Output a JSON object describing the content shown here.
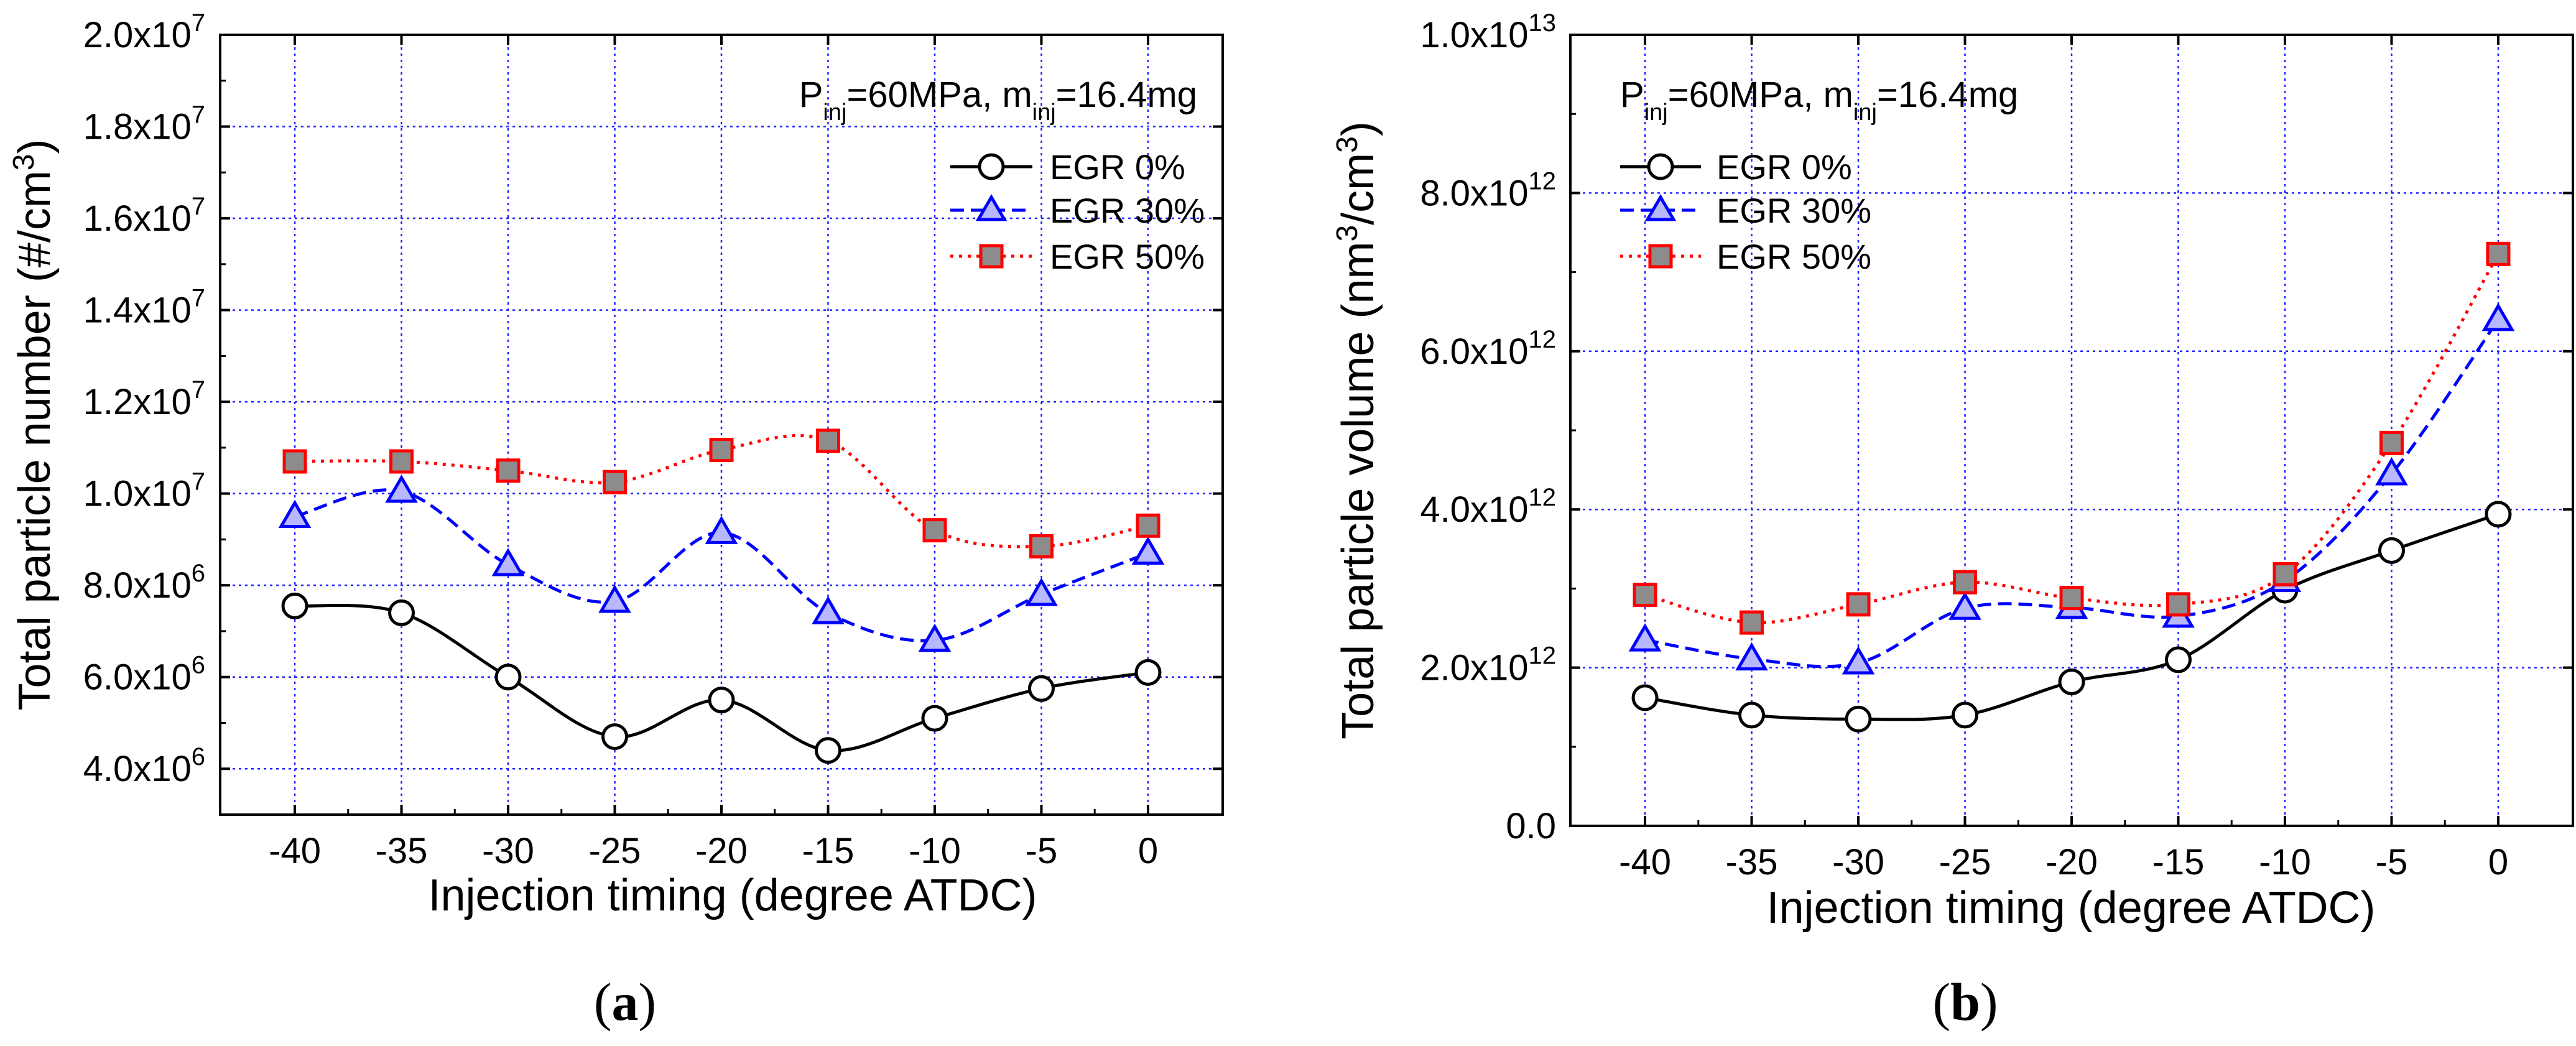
{
  "chart_data": [
    {
      "type": "line",
      "panel_label": {
        "open": "(",
        "letter": "a",
        "close": ")"
      },
      "xlabel": "Injection timing (degree ATDC)",
      "ylabel": {
        "main": "Total particle number (#/cm",
        "sup": "3",
        "close": ")"
      },
      "xlim": [
        -43.5,
        3.5
      ],
      "ylim": [
        3000000,
        20000000
      ],
      "x_ticks": [
        {
          "value": -40,
          "label": "-40"
        },
        {
          "value": -35,
          "label": "-35"
        },
        {
          "value": -30,
          "label": "-30"
        },
        {
          "value": -25,
          "label": "-25"
        },
        {
          "value": -20,
          "label": "-20"
        },
        {
          "value": -15,
          "label": "-15"
        },
        {
          "value": -10,
          "label": "-10"
        },
        {
          "value": -5,
          "label": "-5"
        },
        {
          "value": 0,
          "label": "0"
        }
      ],
      "y_ticks": [
        {
          "value": 4000000,
          "mant": "4.0x10",
          "exp": "6"
        },
        {
          "value": 6000000,
          "mant": "6.0x10",
          "exp": "6"
        },
        {
          "value": 8000000,
          "mant": "8.0x10",
          "exp": "6"
        },
        {
          "value": 10000000,
          "mant": "1.0x10",
          "exp": "7"
        },
        {
          "value": 12000000,
          "mant": "1.2x10",
          "exp": "7"
        },
        {
          "value": 14000000,
          "mant": "1.4x10",
          "exp": "7"
        },
        {
          "value": 16000000,
          "mant": "1.6x10",
          "exp": "7"
        },
        {
          "value": 18000000,
          "mant": "1.8x10",
          "exp": "7"
        },
        {
          "value": 20000000,
          "mant": "2.0x10",
          "exp": "7"
        }
      ],
      "grid": true,
      "annotation": {
        "p": "P",
        "p_sub": "inj",
        "p_val": "=60MPa, m",
        "m_sub": "inj",
        "m_val": "=16.4mg"
      },
      "legend_position": "top-right",
      "series": [
        {
          "name": "EGR 0%",
          "marker": "circle",
          "color": "#000000",
          "fill": "#ffffff",
          "dash": "none",
          "x": [
            -40,
            -35,
            -30,
            -25,
            -20,
            -15,
            -10,
            -5,
            0
          ],
          "values": [
            7550000,
            7400000,
            6000000,
            4700000,
            5500000,
            4400000,
            5100000,
            5750000,
            6100000
          ]
        },
        {
          "name": "EGR 30%",
          "marker": "triangle",
          "color": "#0000ff",
          "fill": "#b8b8ff",
          "dash": "22,11",
          "x": [
            -40,
            -35,
            -30,
            -25,
            -20,
            -15,
            -10,
            -5,
            0
          ],
          "values": [
            9500000,
            10050000,
            8450000,
            7650000,
            9150000,
            7400000,
            6800000,
            7800000,
            8700000
          ]
        },
        {
          "name": "EGR 50%",
          "marker": "square",
          "color": "#ff0000",
          "fill": "#8c8c8c",
          "dash": "5,9",
          "x": [
            -40,
            -35,
            -30,
            -25,
            -20,
            -15,
            -10,
            -5,
            0
          ],
          "values": [
            10700000,
            10700000,
            10500000,
            10250000,
            10950000,
            11150000,
            9200000,
            8850000,
            9300000
          ]
        }
      ]
    },
    {
      "type": "line",
      "panel_label": {
        "open": "(",
        "letter": "b",
        "close": ")"
      },
      "xlabel": "Injection timing (degree ATDC)",
      "ylabel": {
        "main": "Total particle volume (nm",
        "sup": "3",
        "mid": "/cm",
        "sup2": "3",
        "close": ")"
      },
      "xlim": [
        -43.5,
        3.5
      ],
      "ylim": [
        0,
        10000000000000
      ],
      "x_ticks": [
        {
          "value": -40,
          "label": "-40"
        },
        {
          "value": -35,
          "label": "-35"
        },
        {
          "value": -30,
          "label": "-30"
        },
        {
          "value": -25,
          "label": "-25"
        },
        {
          "value": -20,
          "label": "-20"
        },
        {
          "value": -15,
          "label": "-15"
        },
        {
          "value": -10,
          "label": "-10"
        },
        {
          "value": -5,
          "label": "-5"
        },
        {
          "value": 0,
          "label": "0"
        }
      ],
      "y_ticks": [
        {
          "value": 0,
          "mant": "0.0",
          "exp": ""
        },
        {
          "value": 2000000000000,
          "mant": "2.0x10",
          "exp": "12"
        },
        {
          "value": 4000000000000,
          "mant": "4.0x10",
          "exp": "12"
        },
        {
          "value": 6000000000000,
          "mant": "6.0x10",
          "exp": "12"
        },
        {
          "value": 8000000000000,
          "mant": "8.0x10",
          "exp": "12"
        },
        {
          "value": 10000000000000,
          "mant": "1.0x10",
          "exp": "13"
        }
      ],
      "grid": true,
      "annotation": {
        "p": "P",
        "p_sub": "inj",
        "p_val": "=60MPa, m",
        "m_sub": "inj",
        "m_val": "=16.4mg"
      },
      "legend_position": "top-left",
      "series": [
        {
          "name": "EGR 0%",
          "marker": "circle",
          "color": "#000000",
          "fill": "#ffffff",
          "dash": "none",
          "x": [
            -40,
            -35,
            -30,
            -25,
            -20,
            -15,
            -10,
            -5,
            0
          ],
          "values": [
            1620000000000,
            1400000000000,
            1350000000000,
            1400000000000,
            1820000000000,
            2100000000000,
            2980000000000,
            3480000000000,
            3940000000000
          ]
        },
        {
          "name": "EGR 30%",
          "marker": "triangle",
          "color": "#0000ff",
          "fill": "#b8b8ff",
          "dash": "22,11",
          "x": [
            -40,
            -35,
            -30,
            -25,
            -20,
            -15,
            -10,
            -5,
            0
          ],
          "values": [
            2350000000000,
            2110000000000,
            2060000000000,
            2750000000000,
            2760000000000,
            2650000000000,
            3100000000000,
            4450000000000,
            6400000000000
          ]
        },
        {
          "name": "EGR 50%",
          "marker": "square",
          "color": "#ff0000",
          "fill": "#8c8c8c",
          "dash": "5,9",
          "x": [
            -40,
            -35,
            -30,
            -25,
            -20,
            -15,
            -10,
            -5,
            0
          ],
          "values": [
            2920000000000,
            2570000000000,
            2800000000000,
            3080000000000,
            2880000000000,
            2800000000000,
            3180000000000,
            4840000000000,
            7230000000000
          ]
        }
      ]
    }
  ]
}
